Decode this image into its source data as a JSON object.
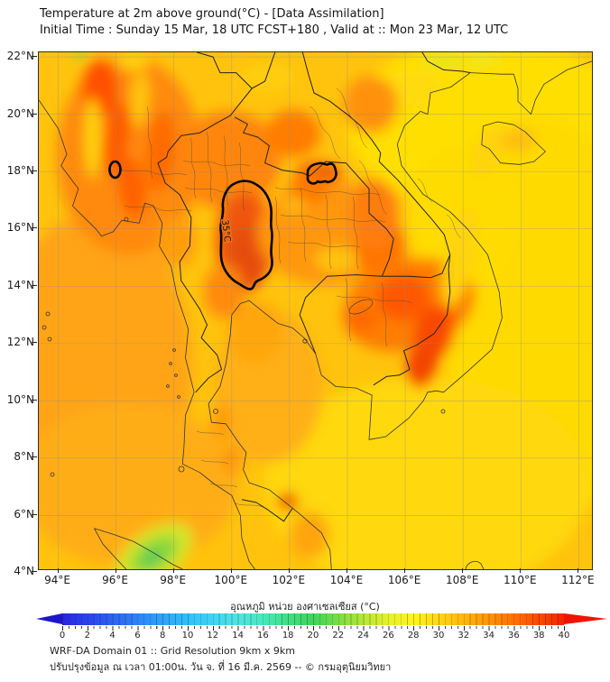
{
  "title": {
    "line1": "Temperature at 2m above ground(°C) - [Data Assimilation]",
    "line2": "Initial Time : Sunday 15 Mar, 18 UTC FCST+180 , Valid at :: Mon 23 Mar, 12 UTC"
  },
  "axes": {
    "lat_labels": [
      "22°N",
      "20°N",
      "18°N",
      "16°N",
      "14°N",
      "12°N",
      "10°N",
      "8°N",
      "6°N",
      "4°N"
    ],
    "lon_labels": [
      "94°E",
      "96°E",
      "98°E",
      "100°E",
      "102°E",
      "104°E",
      "106°E",
      "108°E",
      "110°E",
      "112°E"
    ]
  },
  "map": {
    "contour_label": "35°C"
  },
  "colorbar": {
    "label": "อุณหภูมิ หน่วย องศาเซลเซียส (°C)",
    "tick_labels": [
      "0",
      "2",
      "4",
      "6",
      "8",
      "10",
      "12",
      "14",
      "16",
      "18",
      "20",
      "22",
      "24",
      "26",
      "28",
      "30",
      "32",
      "34",
      "36",
      "38",
      "40"
    ],
    "stops": [
      "#2a24e0",
      "#2b43ef",
      "#2c63f5",
      "#2e83f8",
      "#2fa3fa",
      "#2fc0fa",
      "#3fd4f5",
      "#4fe4e4",
      "#47e8bc",
      "#3fdf83",
      "#3ed45b",
      "#79dd47",
      "#b4e838",
      "#e4f12b",
      "#fef51d",
      "#ffd714",
      "#ffb60d",
      "#ff9407",
      "#fe7104",
      "#fa4a02",
      "#f52300"
    ],
    "under_color": "#1e16c8",
    "over_color": "#ee1500",
    "min": 0,
    "max": 40,
    "unit": "°C"
  },
  "footer": {
    "line1": "WRF-DA Domain 01 :: Grid Resolution 9km x 9km",
    "line2": "ปรับปรุงข้อมูล ณ เวลา 01:00น. วัน จ. ที่ 16 มี.ค. 2569 -- © กรมอุตุนิยมวิทยา"
  },
  "chart_data": {
    "type": "heatmap",
    "title": "Temperature at 2m above ground(°C) - [Data Assimilation]",
    "xlabel_ticks": [
      "94°E",
      "96°E",
      "98°E",
      "100°E",
      "102°E",
      "104°E",
      "106°E",
      "108°E",
      "110°E",
      "112°E"
    ],
    "ylabel_ticks": [
      "22°N",
      "20°N",
      "18°N",
      "16°N",
      "14°N",
      "12°N",
      "10°N",
      "8°N",
      "6°N",
      "4°N"
    ],
    "xlim": [
      93.3,
      112.5
    ],
    "ylim": [
      4.1,
      22.2
    ],
    "grid": true,
    "colorbar_range": [
      0,
      40
    ],
    "colorbar_label": "อุณหภูมิ หน่วย องศาเซลเซียส (°C)",
    "contours": [
      {
        "value": 35,
        "unit": "°C",
        "region": "central Thailand, large closed contour near 100-101E / 13.8-17.7N"
      },
      {
        "value": 35,
        "unit": "°C",
        "region": "northern Laos, small closed contour near 102.5-103.5E / 17.5-18.3N"
      },
      {
        "value": 35,
        "unit": "°C",
        "region": "Myanmar, tiny closed contour near 96E / 18N"
      }
    ],
    "notable_values": {
      "hot_land_core_C": 35,
      "sea_east_C": 28,
      "sea_west_andaman_C": 30,
      "sumatra_highlands_green_C": 20
    }
  }
}
